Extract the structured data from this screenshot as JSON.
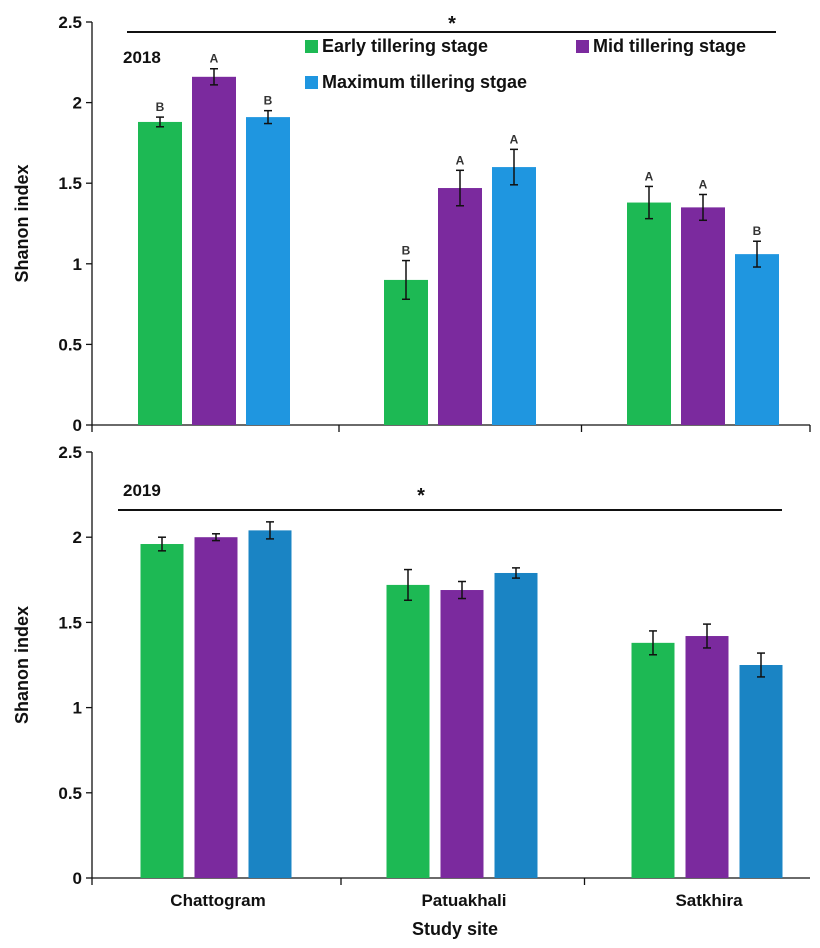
{
  "chart_data": [
    {
      "type": "bar",
      "panel_label": "2018",
      "categories": [
        "Chattogram",
        "Patuakhali",
        "Satkhira"
      ],
      "series": [
        {
          "name": "Early tillering stage",
          "color": "#1db954",
          "values": [
            1.88,
            0.9,
            1.38
          ],
          "errors": [
            0.03,
            0.12,
            0.1
          ],
          "letters": [
            "B",
            "B",
            "A"
          ]
        },
        {
          "name": "Mid tillering stage",
          "color": "#7b2a9e",
          "values": [
            2.16,
            1.47,
            1.35
          ],
          "errors": [
            0.05,
            0.11,
            0.08
          ],
          "letters": [
            "A",
            "A",
            "A"
          ]
        },
        {
          "name": "Maximum tillering stgae",
          "color": "#1f96e0",
          "values": [
            1.91,
            1.6,
            1.06
          ],
          "errors": [
            0.04,
            0.11,
            0.08
          ],
          "letters": [
            "B",
            "A",
            "B"
          ]
        }
      ],
      "ylabel": "Shanon index",
      "ylim": [
        0,
        2.5
      ],
      "yticks": [
        "0",
        "0.5",
        "1",
        "1.5",
        "2",
        "2.5"
      ],
      "significance": "*",
      "legend_position": "top"
    },
    {
      "type": "bar",
      "panel_label": "2019",
      "categories": [
        "Chattogram",
        "Patuakhali",
        "Satkhira"
      ],
      "series": [
        {
          "name": "Early tillering stage",
          "color": "#1db954",
          "values": [
            1.96,
            1.72,
            1.38
          ],
          "errors": [
            0.04,
            0.09,
            0.07
          ],
          "letters": []
        },
        {
          "name": "Mid tillering stage",
          "color": "#7b2a9e",
          "values": [
            2.0,
            1.69,
            1.42
          ],
          "errors": [
            0.02,
            0.05,
            0.07
          ],
          "letters": []
        },
        {
          "name": "Maximum tillering stgae",
          "color": "#1a84c4",
          "values": [
            2.04,
            1.79,
            1.25
          ],
          "errors": [
            0.05,
            0.03,
            0.07
          ],
          "letters": []
        }
      ],
      "ylabel": "Shanon index",
      "xlabel": "Study site",
      "ylim": [
        0,
        2.5
      ],
      "yticks": [
        "0",
        "0.5",
        "1",
        "1.5",
        "2",
        "2.5"
      ],
      "significance": "*"
    }
  ]
}
